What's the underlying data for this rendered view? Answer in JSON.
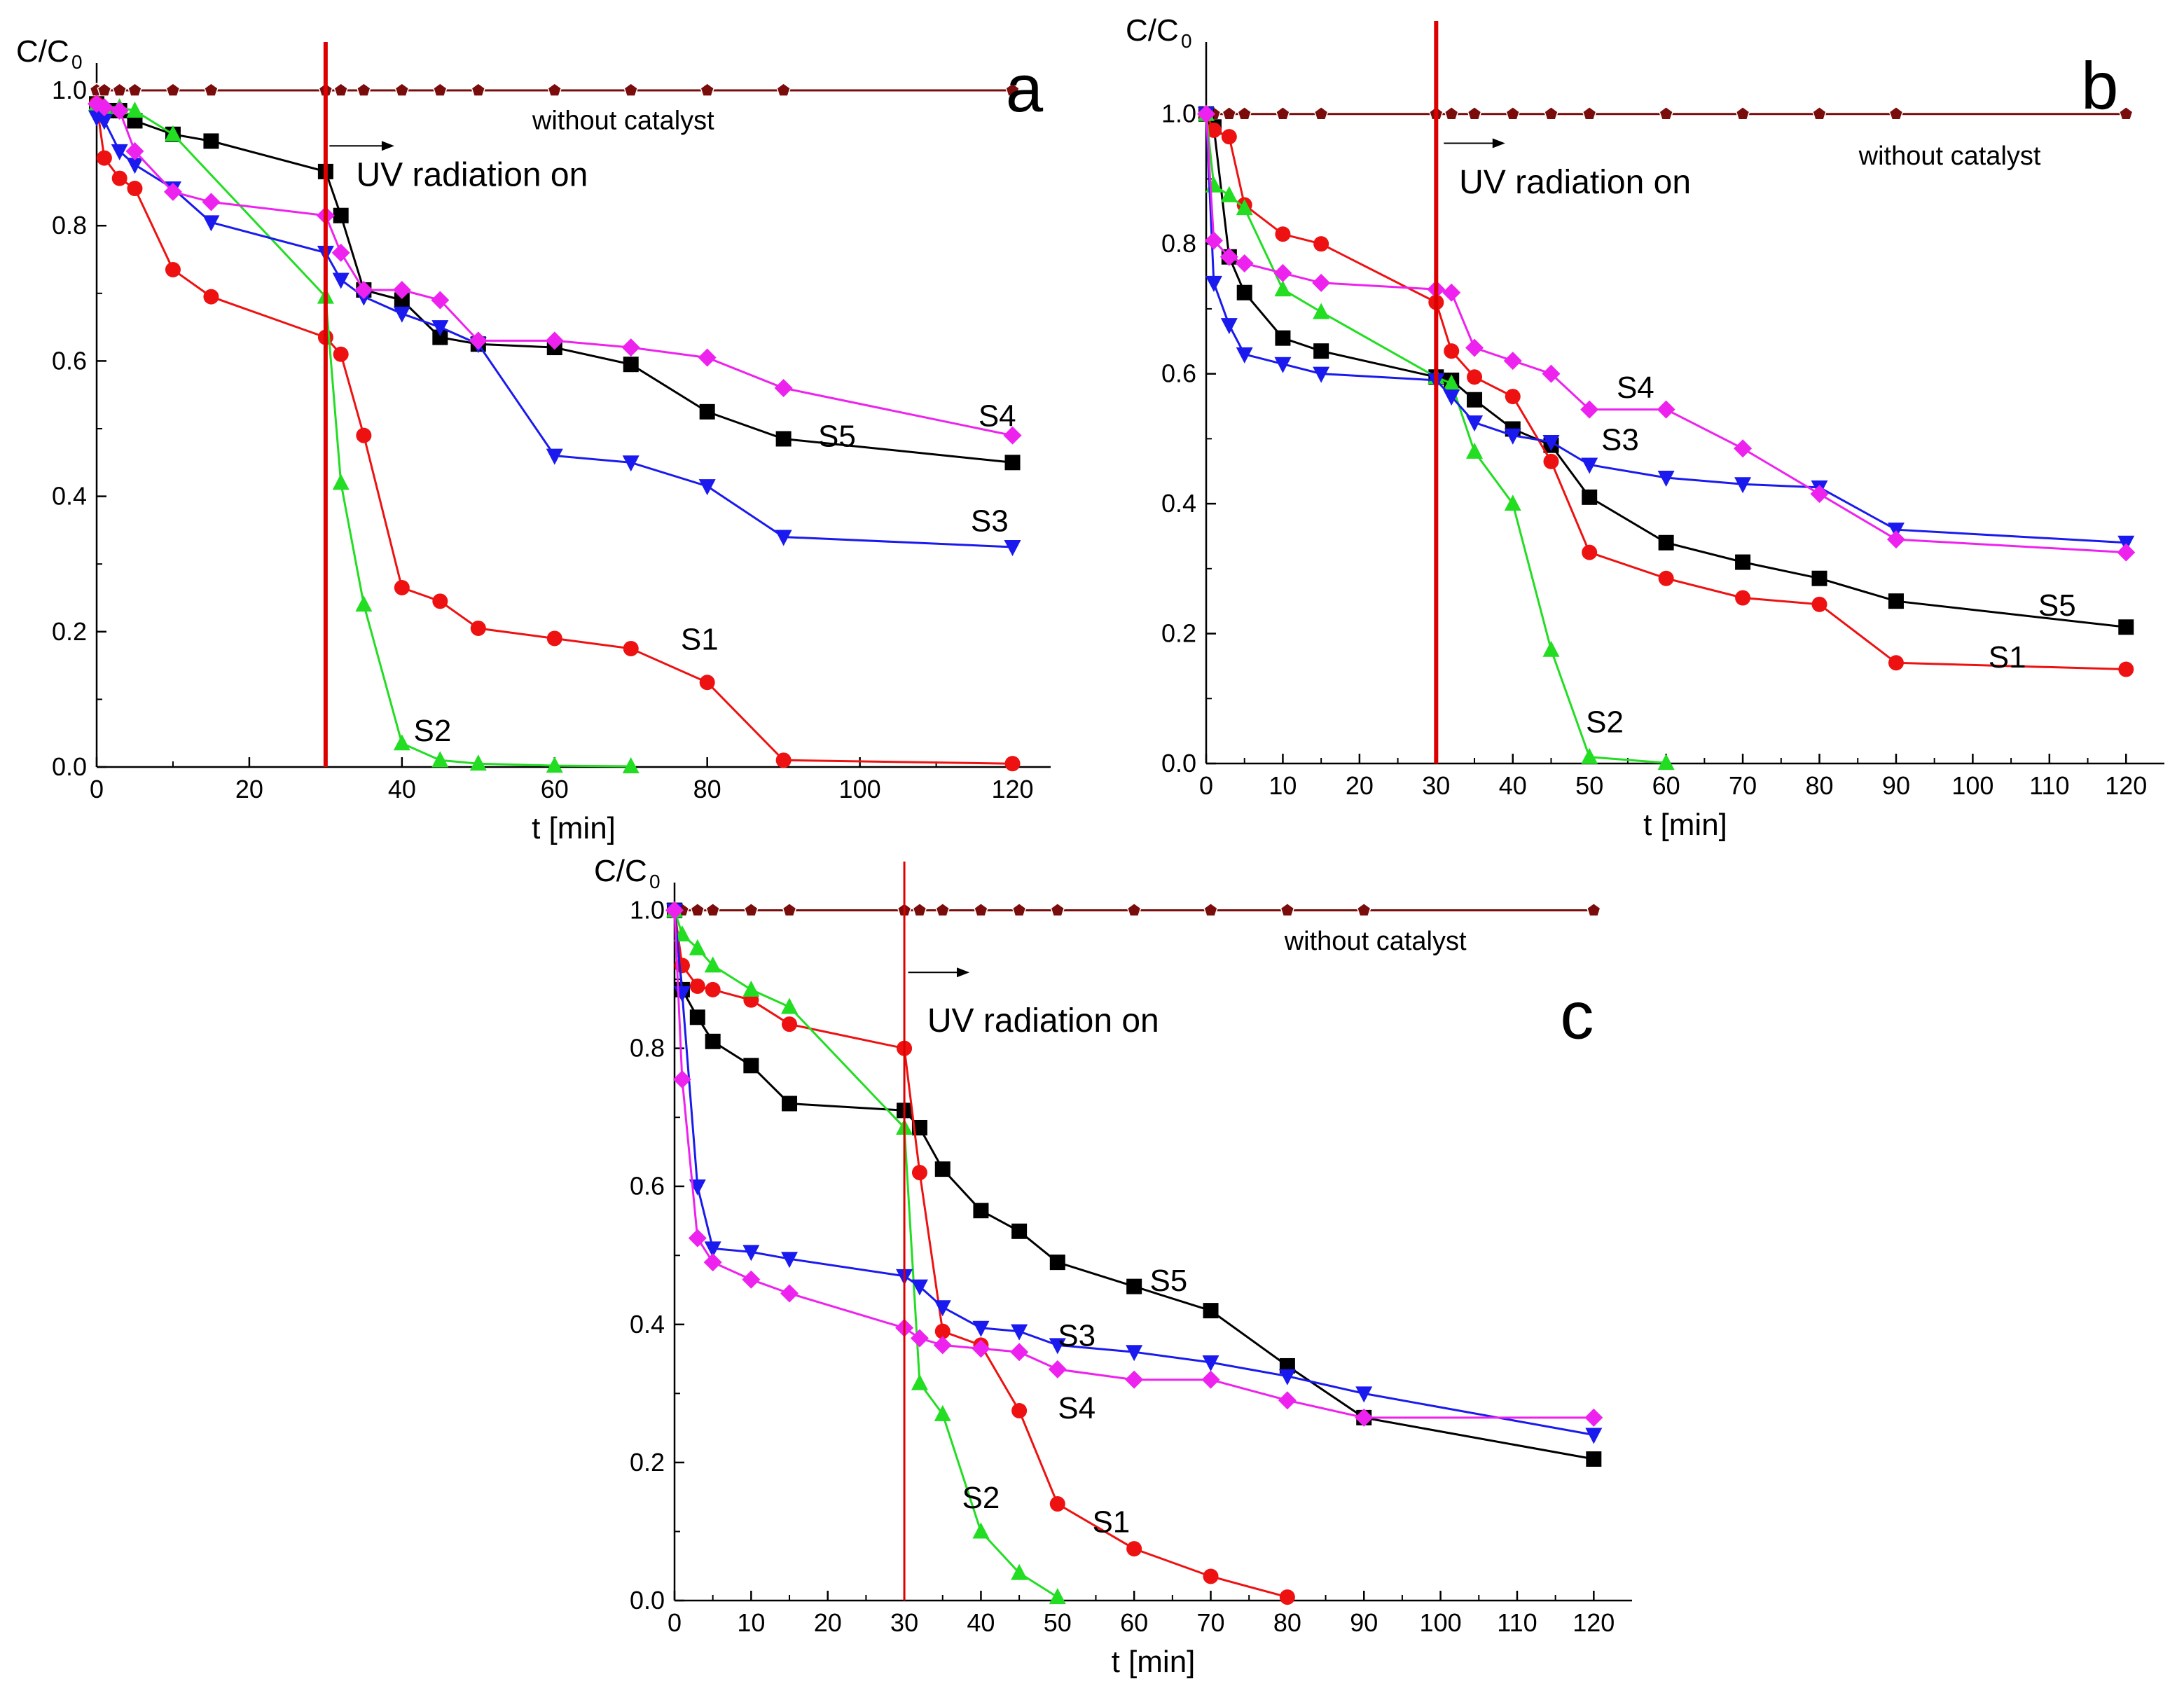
{
  "colors": {
    "S1": "#ee1111",
    "S2": "#22dd22",
    "S3": "#1a1aee",
    "S4": "#ee22ee",
    "S5": "#000000",
    "ref": "#7a0c0c",
    "uv": "#dd0000"
  },
  "series_markers": {
    "S1": "circle",
    "S2": "triangle-up",
    "S3": "triangle-down",
    "S4": "diamond",
    "S5": "square",
    "ref": "pentagon"
  },
  "chart_data": [
    {
      "type": "line",
      "panel": "a",
      "letter": "a",
      "ylabel": "C/C",
      "ylabel_sub": "0",
      "xlabel": "t [min]",
      "xlim": [
        0,
        125
      ],
      "ylim": [
        0,
        1.03
      ],
      "xticks": [
        0,
        20,
        40,
        60,
        80,
        100,
        120
      ],
      "yticks": [
        0.0,
        0.2,
        0.4,
        0.6,
        0.8,
        1.0
      ],
      "ytick_labels": [
        "0.0",
        "0.2",
        "0.4",
        "0.6",
        "0.8",
        "1.0"
      ],
      "uv_time": 30,
      "uv_label": "UV radiation on",
      "ref_label": "without catalyst",
      "ref_x": [
        0,
        1,
        3,
        5,
        10,
        15,
        30,
        32,
        35,
        40,
        45,
        50,
        60,
        70,
        80,
        90,
        120
      ],
      "series": [
        {
          "name": "S5",
          "x": [
            0,
            1,
            3,
            5,
            10,
            15,
            30,
            32,
            35,
            40,
            45,
            50,
            60,
            70,
            80,
            90,
            120
          ],
          "y": [
            0.98,
            0.97,
            0.97,
            0.955,
            0.935,
            0.925,
            0.88,
            0.815,
            0.705,
            0.69,
            0.635,
            0.625,
            0.62,
            0.595,
            0.525,
            0.485,
            0.45
          ]
        },
        {
          "name": "S1",
          "x": [
            0,
            1,
            3,
            5,
            10,
            15,
            30,
            32,
            35,
            40,
            45,
            50,
            60,
            70,
            80,
            90,
            120
          ],
          "y": [
            0.98,
            0.9,
            0.87,
            0.855,
            0.735,
            0.695,
            0.635,
            0.61,
            0.49,
            0.265,
            0.245,
            0.205,
            0.19,
            0.175,
            0.125,
            0.01,
            0.005
          ]
        },
        {
          "name": "S2",
          "x": [
            0,
            1,
            3,
            5,
            10,
            30,
            32,
            35,
            40,
            45,
            50,
            60,
            70
          ],
          "y": [
            0.98,
            0.975,
            0.975,
            0.97,
            0.935,
            0.695,
            0.42,
            0.24,
            0.035,
            0.01,
            0.005,
            0.002,
            0.001
          ]
        },
        {
          "name": "S3",
          "x": [
            0,
            1,
            3,
            5,
            10,
            15,
            30,
            32,
            35,
            40,
            45,
            50,
            60,
            70,
            80,
            90,
            120
          ],
          "y": [
            0.96,
            0.955,
            0.91,
            0.89,
            0.855,
            0.805,
            0.76,
            0.72,
            0.695,
            0.67,
            0.65,
            0.625,
            0.46,
            0.45,
            0.415,
            0.34,
            0.325
          ]
        },
        {
          "name": "S4",
          "x": [
            0,
            1,
            3,
            5,
            10,
            15,
            30,
            32,
            35,
            40,
            45,
            50,
            60,
            70,
            80,
            90,
            120
          ],
          "y": [
            0.98,
            0.975,
            0.97,
            0.91,
            0.85,
            0.835,
            0.815,
            0.76,
            0.705,
            0.705,
            0.69,
            0.63,
            0.63,
            0.62,
            0.605,
            0.56,
            0.49
          ]
        }
      ],
      "labels": [
        {
          "text": "S1",
          "x": 79,
          "y": 0.19
        },
        {
          "text": "S2",
          "x": 44,
          "y": 0.055
        },
        {
          "text": "S3",
          "x": 117,
          "y": 0.365
        },
        {
          "text": "S4",
          "x": 118,
          "y": 0.52
        },
        {
          "text": "S5",
          "x": 97,
          "y": 0.49
        }
      ],
      "ref_label_pos": {
        "x": 69,
        "y": 0.955
      },
      "uv_label_pos": {
        "x": 34,
        "y": 0.875
      },
      "arrow": {
        "x0": 30.5,
        "x1": 39,
        "y": 0.918
      },
      "letter_pos": {
        "x": 124,
        "y": 1.0
      }
    },
    {
      "type": "line",
      "panel": "b",
      "letter": "b",
      "ylabel": "C/C",
      "ylabel_sub": "0",
      "xlabel": "t [min]",
      "xlim": [
        0,
        125
      ],
      "ylim": [
        0,
        1.1
      ],
      "xticks": [
        0,
        10,
        20,
        30,
        40,
        50,
        60,
        70,
        80,
        90,
        100,
        110,
        120
      ],
      "yticks": [
        0.0,
        0.2,
        0.4,
        0.6,
        0.8,
        1.0
      ],
      "ytick_labels": [
        "0.0",
        "0.2",
        "0.4",
        "0.6",
        "0.8",
        "1.0"
      ],
      "uv_time": 30,
      "uv_label": "UV radiation on",
      "ref_label": "without catalyst",
      "ref_x": [
        0,
        1,
        3,
        5,
        10,
        15,
        30,
        32,
        35,
        40,
        45,
        50,
        60,
        70,
        80,
        90,
        120
      ],
      "series": [
        {
          "name": "S5",
          "x": [
            0,
            1,
            3,
            5,
            10,
            15,
            30,
            32,
            35,
            40,
            45,
            50,
            60,
            70,
            80,
            90,
            120
          ],
          "y": [
            1.0,
            0.98,
            0.78,
            0.725,
            0.655,
            0.635,
            0.595,
            0.59,
            0.56,
            0.515,
            0.49,
            0.41,
            0.34,
            0.31,
            0.285,
            0.25,
            0.21
          ]
        },
        {
          "name": "S1",
          "x": [
            0,
            1,
            3,
            5,
            10,
            15,
            30,
            32,
            35,
            40,
            45,
            50,
            60,
            70,
            80,
            90,
            120
          ],
          "y": [
            1.0,
            0.975,
            0.965,
            0.86,
            0.815,
            0.8,
            0.71,
            0.635,
            0.595,
            0.565,
            0.465,
            0.325,
            0.285,
            0.255,
            0.245,
            0.155,
            0.145
          ]
        },
        {
          "name": "S2",
          "x": [
            0,
            1,
            3,
            5,
            10,
            15,
            30,
            32,
            35,
            40,
            45,
            50,
            60
          ],
          "y": [
            1.0,
            0.89,
            0.875,
            0.855,
            0.73,
            0.695,
            0.595,
            0.585,
            0.48,
            0.4,
            0.175,
            0.01,
            0.001
          ]
        },
        {
          "name": "S3",
          "x": [
            0,
            1,
            3,
            5,
            10,
            15,
            30,
            32,
            35,
            40,
            45,
            50,
            60,
            70,
            80,
            90,
            120
          ],
          "y": [
            1.0,
            0.74,
            0.675,
            0.63,
            0.615,
            0.6,
            0.59,
            0.565,
            0.525,
            0.505,
            0.495,
            0.46,
            0.44,
            0.43,
            0.425,
            0.36,
            0.34
          ]
        },
        {
          "name": "S4",
          "x": [
            0,
            1,
            3,
            5,
            10,
            15,
            30,
            32,
            35,
            40,
            45,
            50,
            60,
            70,
            80,
            90,
            120
          ],
          "y": [
            1.0,
            0.805,
            0.78,
            0.77,
            0.755,
            0.74,
            0.73,
            0.725,
            0.64,
            0.62,
            0.6,
            0.545,
            0.545,
            0.485,
            0.415,
            0.345,
            0.325
          ]
        }
      ],
      "labels": [
        {
          "text": "S1",
          "x": 104.5,
          "y": 0.165
        },
        {
          "text": "S2",
          "x": 52,
          "y": 0.065
        },
        {
          "text": "S3",
          "x": 54,
          "y": 0.5
        },
        {
          "text": "S4",
          "x": 56,
          "y": 0.58
        },
        {
          "text": "S5",
          "x": 111,
          "y": 0.245
        }
      ],
      "ref_label_pos": {
        "x": 97,
        "y": 0.935
      },
      "uv_label_pos": {
        "x": 33,
        "y": 0.895
      },
      "arrow": {
        "x0": 31,
        "x1": 39,
        "y": 0.955
      },
      "letter_pos": {
        "x": 119,
        "y": 1.04
      }
    },
    {
      "type": "line",
      "panel": "c",
      "letter": "c",
      "ylabel": "C/C",
      "ylabel_sub": "0",
      "xlabel": "t [min]",
      "xlim": [
        0,
        125
      ],
      "ylim": [
        0,
        1.03
      ],
      "xticks": [
        0,
        10,
        20,
        30,
        40,
        50,
        60,
        70,
        80,
        90,
        100,
        110,
        120
      ],
      "yticks": [
        0.0,
        0.2,
        0.4,
        0.6,
        0.8,
        1.0
      ],
      "ytick_labels": [
        "0.0",
        "0.2",
        "0.4",
        "0.6",
        "0.8",
        "1.0"
      ],
      "uv_time": 30,
      "uv_label": "UV radiation on",
      "ref_label": "without catalyst",
      "ref_x": [
        0,
        1,
        3,
        5,
        10,
        15,
        30,
        32,
        35,
        40,
        45,
        50,
        60,
        70,
        80,
        90,
        120
      ],
      "series": [
        {
          "name": "S5",
          "x": [
            0,
            1,
            3,
            5,
            10,
            15,
            30,
            32,
            35,
            40,
            45,
            50,
            60,
            70,
            80,
            90,
            120
          ],
          "y": [
            1.0,
            0.885,
            0.845,
            0.81,
            0.775,
            0.72,
            0.71,
            0.685,
            0.625,
            0.565,
            0.535,
            0.49,
            0.455,
            0.42,
            0.34,
            0.265,
            0.205
          ]
        },
        {
          "name": "S1",
          "x": [
            0,
            1,
            3,
            5,
            10,
            15,
            30,
            32,
            35,
            40,
            45,
            50,
            60,
            70,
            80
          ],
          "y": [
            1.0,
            0.92,
            0.89,
            0.885,
            0.87,
            0.835,
            0.8,
            0.62,
            0.39,
            0.37,
            0.275,
            0.14,
            0.075,
            0.035,
            0.005
          ]
        },
        {
          "name": "S2",
          "x": [
            0,
            1,
            3,
            5,
            10,
            15,
            30,
            32,
            35,
            40,
            45,
            50
          ],
          "y": [
            1.0,
            0.965,
            0.945,
            0.92,
            0.885,
            0.86,
            0.685,
            0.315,
            0.27,
            0.1,
            0.04,
            0.005
          ]
        },
        {
          "name": "S3",
          "x": [
            0,
            1,
            3,
            5,
            10,
            15,
            30,
            32,
            35,
            40,
            45,
            50,
            60,
            70,
            80,
            90,
            120
          ],
          "y": [
            1.0,
            0.88,
            0.6,
            0.51,
            0.505,
            0.495,
            0.47,
            0.455,
            0.425,
            0.395,
            0.39,
            0.37,
            0.36,
            0.345,
            0.325,
            0.3,
            0.24
          ]
        },
        {
          "name": "S4",
          "x": [
            0,
            1,
            3,
            5,
            10,
            15,
            30,
            32,
            35,
            40,
            45,
            50,
            60,
            70,
            80,
            90,
            120
          ],
          "y": [
            1.0,
            0.755,
            0.525,
            0.49,
            0.465,
            0.445,
            0.395,
            0.38,
            0.37,
            0.365,
            0.36,
            0.335,
            0.32,
            0.32,
            0.29,
            0.265,
            0.265
          ]
        }
      ],
      "labels": [
        {
          "text": "S1",
          "x": 57,
          "y": 0.115
        },
        {
          "text": "S2",
          "x": 40,
          "y": 0.15
        },
        {
          "text": "S3",
          "x": 52.5,
          "y": 0.385
        },
        {
          "text": "S4",
          "x": 52.5,
          "y": 0.28
        },
        {
          "text": "S5",
          "x": 64.5,
          "y": 0.465
        }
      ],
      "ref_label_pos": {
        "x": 91.5,
        "y": 0.955
      },
      "uv_label_pos": {
        "x": 33,
        "y": 0.84
      },
      "arrow": {
        "x0": 30.5,
        "x1": 38.5,
        "y": 0.91
      },
      "letter_pos": {
        "x": 120,
        "y": 0.845
      }
    }
  ]
}
